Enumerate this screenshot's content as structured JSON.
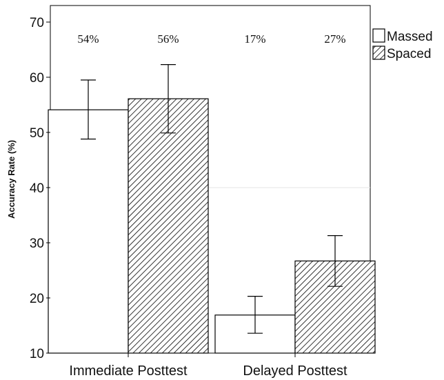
{
  "chart_data": {
    "type": "bar",
    "title": "",
    "xlabel": "",
    "ylabel": "Accuracy Rate (%)",
    "ylim": [
      10,
      73
    ],
    "yticks": [
      10,
      20,
      30,
      40,
      50,
      60,
      70
    ],
    "categories": [
      "Immediate Posttest",
      "Delayed Posttest"
    ],
    "series": [
      {
        "name": "Massed",
        "values": [
          54.1,
          16.9
        ],
        "error_low": [
          48.8,
          13.6
        ],
        "error_high": [
          59.5,
          20.3
        ],
        "labels": [
          "54%",
          "17%"
        ],
        "fill": "#ffffff",
        "pattern": "none"
      },
      {
        "name": "Spaced",
        "values": [
          56.1,
          26.7
        ],
        "error_low": [
          49.9,
          22.1
        ],
        "error_high": [
          62.3,
          31.3
        ],
        "labels": [
          "56%",
          "27%"
        ],
        "fill": "#ffffff",
        "pattern": "diagonal-hatch"
      }
    ],
    "grid": false,
    "legend_position": "top-right",
    "colors": {
      "axis": "#000000",
      "bar_edge": "#000000",
      "hatch": "#000000",
      "grid_line": "#e6e6e6"
    }
  }
}
